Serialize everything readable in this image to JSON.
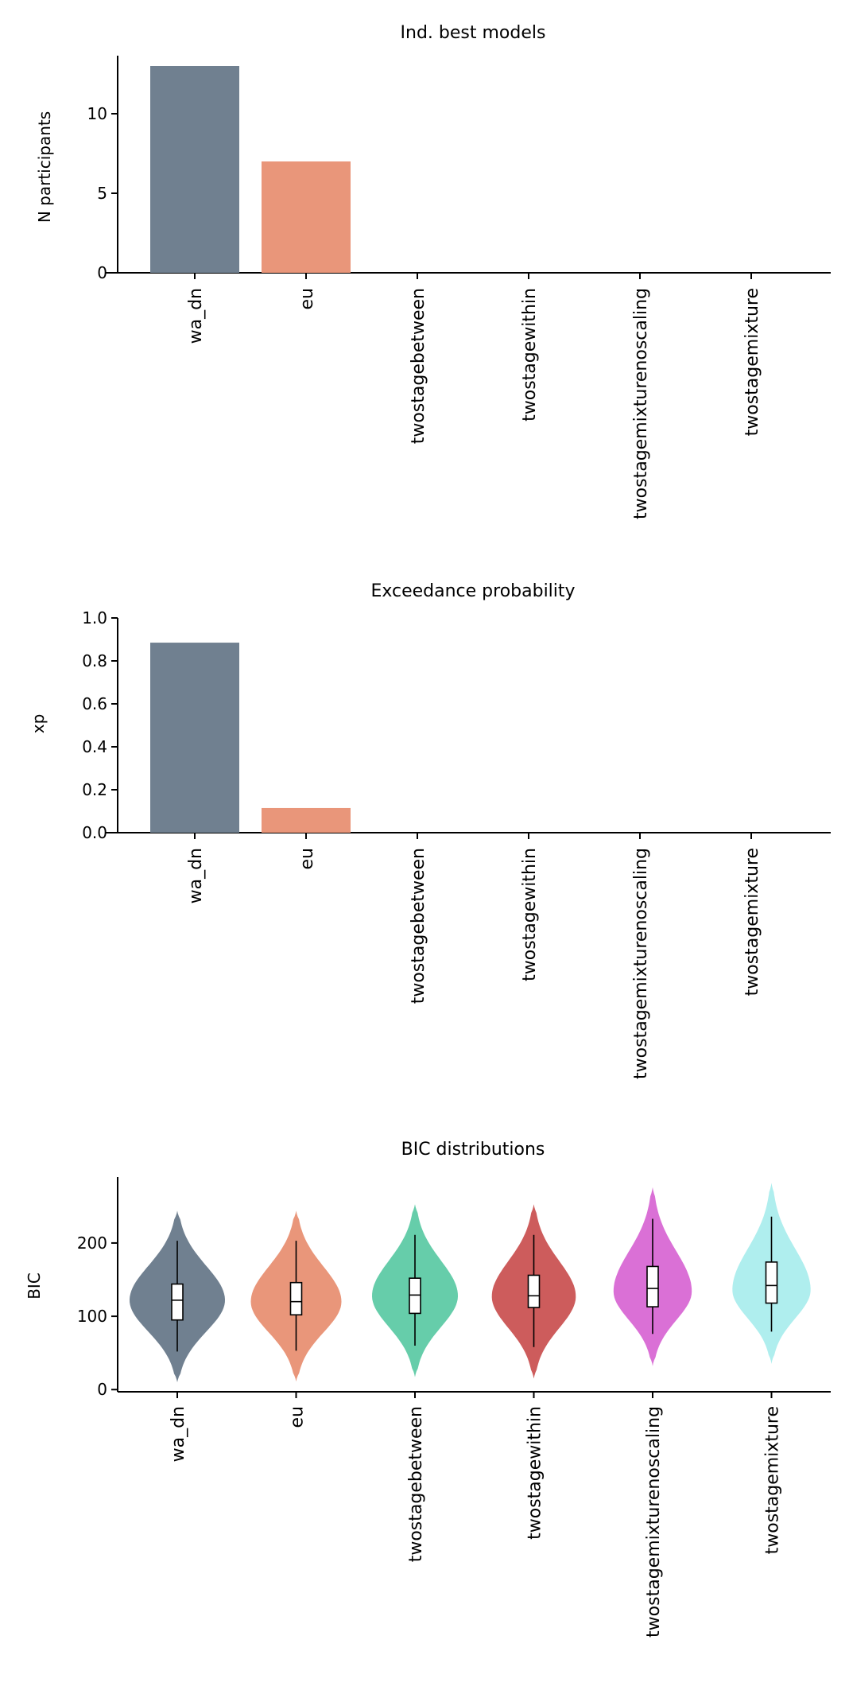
{
  "chart_data": [
    {
      "type": "bar",
      "title": "Ind. best models",
      "xlabel": "",
      "ylabel": "N participants",
      "categories": [
        "wa_dn",
        "eu",
        "twostagebetween",
        "twostagewithin",
        "twostagemixturenoscaling",
        "twostagemixture"
      ],
      "values": [
        13,
        7,
        0,
        0,
        0,
        0
      ],
      "colors": [
        "#708090",
        "#E9967A",
        "#66CDAA",
        "#CD5C5C",
        "#DA70D6",
        "#AFEEEE"
      ],
      "ylim": [
        0,
        13.65
      ],
      "yticks": [
        0,
        5,
        10
      ],
      "ytick_labels": [
        "0",
        "5",
        "10"
      ],
      "grid": false
    },
    {
      "type": "bar",
      "title": "Exceedance probability",
      "xlabel": "",
      "ylabel": "xp",
      "categories": [
        "wa_dn",
        "eu",
        "twostagebetween",
        "twostagewithin",
        "twostagemixturenoscaling",
        "twostagemixture"
      ],
      "values": [
        0.885,
        0.115,
        0,
        0,
        0,
        0
      ],
      "colors": [
        "#708090",
        "#E9967A",
        "#66CDAA",
        "#CD5C5C",
        "#DA70D6",
        "#AFEEEE"
      ],
      "ylim": [
        0,
        1.0
      ],
      "yticks": [
        0,
        0.2,
        0.4,
        0.6,
        0.8,
        1.0
      ],
      "ytick_labels": [
        "0.0",
        "0.2",
        "0.4",
        "0.6",
        "0.8",
        "1.0"
      ],
      "grid": false
    },
    {
      "type": "violin",
      "title": "BIC distributions",
      "xlabel": "",
      "ylabel": "BIC",
      "categories": [
        "wa_dn",
        "eu",
        "twostagebetween",
        "twostagewithin",
        "twostagemixturenoscaling",
        "twostagemixture"
      ],
      "colors": [
        "#708090",
        "#E9967A",
        "#66CDAA",
        "#CD5C5C",
        "#DA70D6",
        "#AFEEEE"
      ],
      "ylim": [
        -3,
        290
      ],
      "yticks": [
        0,
        100,
        200
      ],
      "ytick_labels": [
        "0",
        "100",
        "200"
      ],
      "grid": false,
      "series": [
        {
          "category": "wa_dn",
          "violin_min": 10,
          "violin_max": 244,
          "mode": 122,
          "width": 1.0,
          "whisker_low": 52,
          "q1": 95,
          "median": 122,
          "q3": 144,
          "whisker_high": 203
        },
        {
          "category": "eu",
          "violin_min": 11,
          "violin_max": 244,
          "mode": 120,
          "width": 0.95,
          "whisker_low": 53,
          "q1": 102,
          "median": 120,
          "q3": 146,
          "whisker_high": 203
        },
        {
          "category": "twostagebetween",
          "violin_min": 17,
          "violin_max": 253,
          "mode": 128,
          "width": 0.9,
          "whisker_low": 60,
          "q1": 104,
          "median": 129,
          "q3": 152,
          "whisker_high": 211
        },
        {
          "category": "twostagewithin",
          "violin_min": 15,
          "violin_max": 253,
          "mode": 127,
          "width": 0.88,
          "whisker_low": 58,
          "q1": 112,
          "median": 128,
          "q3": 156,
          "whisker_high": 211
        },
        {
          "category": "twostagemixturenoscaling",
          "violin_min": 32,
          "violin_max": 276,
          "mode": 134,
          "width": 0.82,
          "whisker_low": 76,
          "q1": 113,
          "median": 138,
          "q3": 168,
          "whisker_high": 233
        },
        {
          "category": "twostagemixture",
          "violin_min": 35,
          "violin_max": 282,
          "mode": 136,
          "width": 0.82,
          "whisker_low": 79,
          "q1": 118,
          "median": 142,
          "q3": 174,
          "whisker_high": 236
        }
      ]
    }
  ]
}
